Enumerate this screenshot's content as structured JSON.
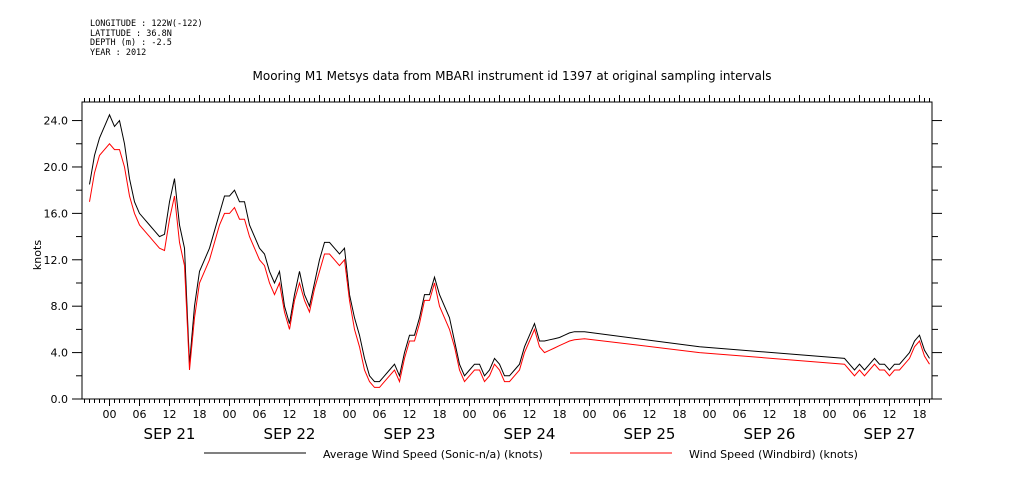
{
  "meta_lines": [
    "LONGITUDE : 122W(-122)",
    "LATITUDE : 36.8N",
    "DEPTH (m) : -2.5",
    "YEAR : 2012"
  ],
  "chart_data": {
    "type": "line",
    "title": "Mooring M1 Metsys data from MBARI instrument id 1397 at original sampling intervals",
    "ylabel": "knots",
    "xlabel": "",
    "ylim": [
      0,
      25.6
    ],
    "xlim_hours": [
      -5.5,
      164.5
    ],
    "y_ticks": [
      "0.0",
      "4.0",
      "8.0",
      "12.0",
      "16.0",
      "20.0",
      "24.0"
    ],
    "y_tick_values": [
      0,
      4,
      8,
      12,
      16,
      20,
      24
    ],
    "x_hour_labels": [
      "00",
      "06",
      "12",
      "18",
      "00",
      "06",
      "12",
      "18",
      "00",
      "06",
      "12",
      "18",
      "00",
      "06",
      "12",
      "18",
      "00",
      "06",
      "12",
      "18",
      "00",
      "06",
      "12",
      "18",
      "00",
      "06",
      "12",
      "18"
    ],
    "x_hour_positions": [
      0,
      6,
      12,
      18,
      24,
      30,
      36,
      42,
      48,
      54,
      60,
      66,
      72,
      78,
      84,
      90,
      96,
      102,
      108,
      114,
      120,
      126,
      132,
      138,
      144,
      150,
      156,
      162
    ],
    "day_labels": [
      "SEP 21",
      "SEP 22",
      "SEP 23",
      "SEP 24",
      "SEP 25",
      "SEP 26",
      "SEP 27"
    ],
    "day_centers": [
      12,
      36,
      60,
      84,
      108,
      132,
      156
    ],
    "grid": false,
    "legend_placement": "bottom",
    "series": [
      {
        "name": "Average Wind Speed (Sonic-n/a) (knots)",
        "color": "#000000",
        "x": [
          -4,
          -3,
          -2,
          -1,
          0,
          1,
          2,
          3,
          4,
          5,
          6,
          7,
          8,
          9,
          10,
          11,
          12,
          13,
          14,
          15,
          16,
          17,
          18,
          19,
          20,
          21,
          22,
          23,
          24,
          25,
          26,
          27,
          28,
          29,
          30,
          31,
          32,
          33,
          34,
          35,
          36,
          37,
          38,
          39,
          40,
          41,
          42,
          43,
          44,
          45,
          46,
          47,
          48,
          49,
          50,
          51,
          52,
          53,
          54,
          55,
          56,
          57,
          58,
          59,
          60,
          61,
          62,
          63,
          64,
          65,
          66,
          67,
          68,
          69,
          70,
          71,
          72,
          73,
          74,
          75,
          76,
          77,
          78,
          79,
          80,
          81,
          82,
          83,
          84,
          85,
          86,
          87,
          88,
          89,
          90,
          91,
          92,
          93,
          95,
          118,
          147,
          148,
          149,
          150,
          151,
          152,
          153,
          154,
          155,
          156,
          157,
          158,
          159,
          160,
          161,
          162,
          163,
          164
        ],
        "values": [
          18.5,
          21,
          22.5,
          23.5,
          24.5,
          23.5,
          24,
          22,
          19,
          17,
          16,
          15.5,
          15,
          14.5,
          14,
          14.2,
          17,
          19,
          15,
          13,
          3,
          8,
          11,
          12,
          13,
          14.5,
          16,
          17.5,
          17.5,
          18,
          17,
          17,
          15,
          14,
          13,
          12.5,
          11,
          10,
          11,
          8,
          6.5,
          9,
          11,
          9,
          8,
          10,
          12,
          13.5,
          13.5,
          13,
          12.5,
          13,
          9,
          7,
          5.5,
          3.5,
          2,
          1.5,
          1.5,
          2,
          2.5,
          3,
          2,
          4,
          5.5,
          5.5,
          7,
          9,
          9,
          10.5,
          9,
          8,
          7,
          5,
          3,
          2,
          2.5,
          3,
          3,
          2,
          2.5,
          3.5,
          3,
          2,
          2,
          2.5,
          3,
          4.5,
          5.5,
          6.5,
          5,
          5,
          5.1,
          5.2,
          5.3,
          5.5,
          5.7,
          5.8,
          5.8,
          4.5,
          3.5,
          3,
          2.5,
          3,
          2.5,
          3,
          3.5,
          3,
          3,
          2.5,
          3,
          3,
          3.5,
          4,
          5,
          5.5,
          4.2,
          3.5
        ]
      },
      {
        "name": "Wind Speed (Windbird) (knots)",
        "color": "#ff0000",
        "x": [
          -4,
          -3,
          -2,
          -1,
          0,
          1,
          2,
          3,
          4,
          5,
          6,
          7,
          8,
          9,
          10,
          11,
          12,
          13,
          14,
          15,
          16,
          17,
          18,
          19,
          20,
          21,
          22,
          23,
          24,
          25,
          26,
          27,
          28,
          29,
          30,
          31,
          32,
          33,
          34,
          35,
          36,
          37,
          38,
          39,
          40,
          41,
          42,
          43,
          44,
          45,
          46,
          47,
          48,
          49,
          50,
          51,
          52,
          53,
          54,
          55,
          56,
          57,
          58,
          59,
          60,
          61,
          62,
          63,
          64,
          65,
          66,
          67,
          68,
          69,
          70,
          71,
          72,
          73,
          74,
          75,
          76,
          77,
          78,
          79,
          80,
          81,
          82,
          83,
          84,
          85,
          86,
          87,
          88,
          89,
          90,
          91,
          92,
          93,
          95,
          118,
          147,
          148,
          149,
          150,
          151,
          152,
          153,
          154,
          155,
          156,
          157,
          158,
          159,
          160,
          161,
          162,
          163,
          164
        ],
        "values": [
          17,
          19.5,
          21,
          21.5,
          22,
          21.5,
          21.5,
          20,
          17.5,
          16,
          15,
          14.5,
          14,
          13.5,
          13,
          12.8,
          15.5,
          17.5,
          13.5,
          11.5,
          2.5,
          7,
          10,
          11,
          12,
          13.5,
          15,
          16,
          16,
          16.5,
          15.5,
          15.5,
          14,
          13,
          12,
          11.5,
          10,
          9,
          10,
          7.5,
          6,
          8.5,
          10,
          8.5,
          7.5,
          9.5,
          11,
          12.5,
          12.5,
          12,
          11.5,
          12,
          8.5,
          6,
          4.5,
          2.5,
          1.5,
          1,
          1,
          1.5,
          2,
          2.5,
          1.5,
          3.5,
          5,
          5,
          6.5,
          8.5,
          8.5,
          10,
          8,
          7,
          6,
          4.5,
          2.5,
          1.5,
          2,
          2.5,
          2.5,
          1.5,
          2,
          3,
          2.5,
          1.5,
          1.5,
          2,
          2.5,
          4,
          5,
          6,
          4.5,
          4,
          4.2,
          4.4,
          4.6,
          4.8,
          5,
          5.1,
          5.2,
          4,
          3,
          2.5,
          2,
          2.5,
          2,
          2.5,
          3,
          2.5,
          2.5,
          2,
          2.5,
          2.5,
          3,
          3.5,
          4.5,
          5,
          3.7,
          3
        ]
      }
    ]
  }
}
